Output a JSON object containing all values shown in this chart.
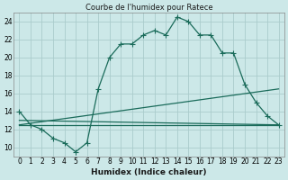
{
  "title": "Courbe de l'humidex pour Ratece",
  "xlabel": "Humidex (Indice chaleur)",
  "bg_color": "#cce8e8",
  "grid_color": "#aacccc",
  "line_color": "#1a6b5a",
  "xlim": [
    -0.5,
    23.5
  ],
  "ylim": [
    9,
    25
  ],
  "yticks": [
    10,
    12,
    14,
    16,
    18,
    20,
    22,
    24
  ],
  "xticks": [
    0,
    1,
    2,
    3,
    4,
    5,
    6,
    7,
    8,
    9,
    10,
    11,
    12,
    13,
    14,
    15,
    16,
    17,
    18,
    19,
    20,
    21,
    22,
    23
  ],
  "main_series": {
    "x": [
      0,
      1,
      2,
      3,
      4,
      5,
      6,
      7,
      8,
      9,
      10,
      11,
      12,
      13,
      14,
      15,
      16,
      17,
      18,
      19,
      20,
      21,
      22,
      23
    ],
    "y": [
      14.0,
      12.5,
      12.0,
      11.0,
      10.5,
      9.5,
      10.5,
      16.5,
      20.0,
      21.5,
      21.5,
      22.5,
      23.0,
      22.5,
      24.5,
      24.0,
      22.5,
      22.5,
      20.5,
      20.5,
      17.0,
      15.0,
      13.5,
      12.5
    ]
  },
  "extra_lines": [
    {
      "x": [
        0,
        23
      ],
      "y": [
        12.5,
        12.5
      ]
    },
    {
      "x": [
        0,
        23
      ],
      "y": [
        12.5,
        16.5
      ]
    },
    {
      "x": [
        0,
        23
      ],
      "y": [
        13.0,
        12.5
      ]
    }
  ]
}
